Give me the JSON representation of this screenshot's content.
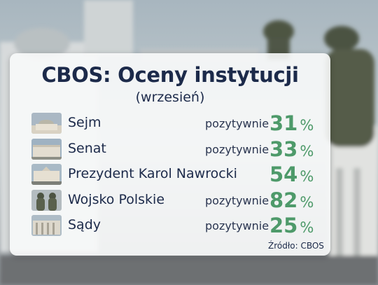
{
  "header": {
    "title": "CBOS: Oceny instytucji",
    "subtitle": "(wrzesień)"
  },
  "rows": [
    {
      "name": "Sejm",
      "label": "pozytywnie",
      "value": 31,
      "unit": "%"
    },
    {
      "name": "Senat",
      "label": "pozytywnie",
      "value": 33,
      "unit": "%"
    },
    {
      "name": "Prezydent Karol Nawrocki",
      "value": 54,
      "unit": "%"
    },
    {
      "name": "Wojsko Polskie",
      "label": "pozytywnie",
      "value": 82,
      "unit": "%"
    },
    {
      "name": "Sądy",
      "label": "pozytywnie",
      "value": 25,
      "unit": "%"
    }
  ],
  "footer": {
    "source": "Źródło: CBOS"
  }
}
